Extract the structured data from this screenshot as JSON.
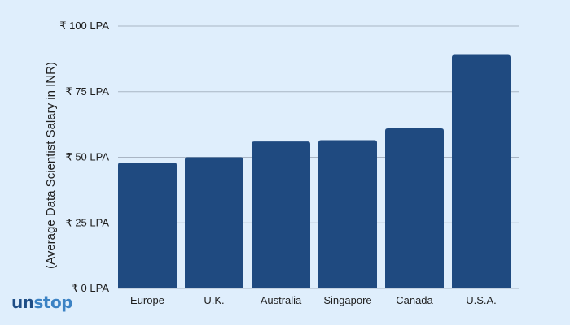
{
  "colors": {
    "background": "#dfeefc",
    "bar": "#1f4a80",
    "grid": "#a9b5c4",
    "text": "#1e1e1e",
    "logo_dark": "#1e4d86",
    "logo_light": "#3b82c4"
  },
  "logo": {
    "text": "unstop",
    "part_dark": "un",
    "part_light": "stop"
  },
  "chart_data": {
    "type": "bar",
    "title": "",
    "xlabel": "",
    "ylabel": "(Average Data Scientist Salary in INR)",
    "categories": [
      "Europe",
      "U.K.",
      "Australia",
      "Singapore",
      "Canada",
      "U.S.A."
    ],
    "values": [
      48,
      50,
      56,
      56.5,
      61,
      89
    ],
    "ylim": [
      0,
      100
    ],
    "y_ticks": [
      0,
      25,
      50,
      75,
      100
    ],
    "y_tick_labels": [
      "₹ 0 LPA",
      "₹ 25 LPA",
      "₹ 50 LPA",
      "₹ 75 LPA",
      "₹ 100 LPA"
    ],
    "grid": true,
    "legend": "none"
  }
}
